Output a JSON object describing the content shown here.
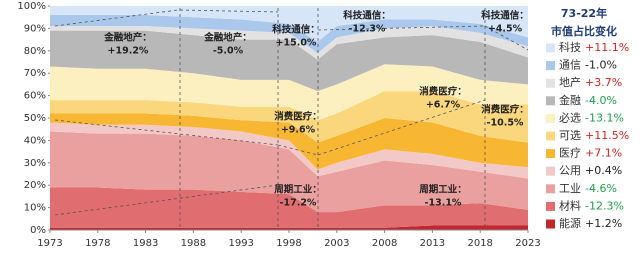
{
  "chart_data": {
    "type": "stacked_area",
    "x": [
      1973,
      1978,
      1983,
      1988,
      1993,
      1998,
      2001,
      2003,
      2008,
      2013,
      2018,
      2023
    ],
    "xlim": [
      1973,
      2023
    ],
    "xticks": [
      1973,
      1978,
      1983,
      1988,
      1993,
      1998,
      2003,
      2008,
      2013,
      2018,
      2023
    ],
    "ylim": [
      0,
      100
    ],
    "yticks": [
      {
        "value": 0,
        "label": "0%"
      },
      {
        "value": 10,
        "label": "10%"
      },
      {
        "value": 20,
        "label": "20%"
      },
      {
        "value": 30,
        "label": "30%"
      },
      {
        "value": 40,
        "label": "40%"
      },
      {
        "value": 50,
        "label": "50%"
      },
      {
        "value": 60,
        "label": "60%"
      },
      {
        "value": 70,
        "label": "70%"
      },
      {
        "value": 80,
        "label": "80%"
      },
      {
        "value": 90,
        "label": "90%"
      },
      {
        "value": 100,
        "label": "100%"
      }
    ],
    "legend_title": "73-22年",
    "legend_subtitle": "市值占比变化",
    "series": [
      {
        "name": "能源",
        "color": "#c0282d",
        "change": "+1.2%",
        "change_color": "#222",
        "values": [
          1,
          1,
          1,
          1,
          1,
          1,
          1,
          1,
          1,
          2,
          2,
          2
        ]
      },
      {
        "name": "材料",
        "color": "#e06d70",
        "change": "-12.3%",
        "change_color": "#1aa34a",
        "values": [
          18,
          18,
          17,
          17,
          16,
          15,
          7,
          7,
          10,
          9,
          10,
          7
        ]
      },
      {
        "name": "工业",
        "color": "#eba0a0",
        "change": "-4.6%",
        "change_color": "#1aa34a",
        "values": [
          25,
          24,
          25,
          24,
          23,
          20,
          16,
          18,
          20,
          18,
          14,
          14
        ]
      },
      {
        "name": "公用",
        "color": "#f3c9c7",
        "change": "+0.4%",
        "change_color": "#222",
        "values": [
          4,
          4,
          4,
          4,
          4,
          4,
          3,
          4,
          5,
          5,
          4,
          5
        ]
      },
      {
        "name": "医疗",
        "color": "#f7b733",
        "change": "+7.1%",
        "change_color": "#e02020",
        "values": [
          4,
          5,
          5,
          5,
          5,
          8,
          12,
          12,
          14,
          14,
          12,
          11
        ]
      },
      {
        "name": "可选",
        "color": "#fad77c",
        "change": "+11.5%",
        "change_color": "#e02020",
        "values": [
          6,
          6,
          6,
          6,
          6,
          7,
          10,
          10,
          12,
          14,
          14,
          17
        ]
      },
      {
        "name": "必选",
        "color": "#fdf0c0",
        "change": "-13.1%",
        "change_color": "#1aa34a",
        "values": [
          15,
          14,
          14,
          13,
          12,
          12,
          13,
          13,
          12,
          11,
          11,
          9
        ]
      },
      {
        "name": "金融",
        "color": "#b8b8b8",
        "change": "-4.0%",
        "change_color": "#1aa34a",
        "values": [
          16,
          17,
          17,
          17,
          18,
          18,
          14,
          18,
          12,
          14,
          17,
          12
        ]
      },
      {
        "name": "地产",
        "color": "#e2e2e2",
        "change": "+3.7%",
        "change_color": "#e02020",
        "values": [
          2,
          2,
          2,
          3,
          4,
          3,
          3,
          3,
          4,
          4,
          4,
          5
        ]
      },
      {
        "name": "通信",
        "color": "#a9c8ec",
        "change": "-1.0%",
        "change_color": "#222",
        "values": [
          5,
          5,
          5,
          5,
          5,
          4,
          5,
          5,
          4,
          3,
          4,
          4
        ]
      },
      {
        "name": "科技",
        "color": "#d6e5f7",
        "change": "+11.1%",
        "change_color": "#e02020",
        "values": [
          4,
          4,
          4,
          5,
          6,
          8,
          16,
          9,
          6,
          6,
          8,
          14
        ]
      }
    ],
    "annotations": [
      {
        "title": "金融地产：",
        "text": "+19.2%"
      },
      {
        "title": "金融地产：",
        "text": "-5.0%"
      },
      {
        "title": "科技通信：",
        "text": "+15.0%"
      },
      {
        "title": "科技通信：",
        "text": "-12.3%"
      },
      {
        "title": "科技通信：",
        "text": "+4.5%"
      },
      {
        "title": "消费医疗：",
        "text": "+9.6%"
      },
      {
        "title": "消费医疗：",
        "text": "+6.7%"
      },
      {
        "title": "消费医疗：",
        "text": "-10.5%"
      },
      {
        "title": "周期工业：",
        "text": "-17.2%"
      },
      {
        "title": "周期工业：",
        "text": "-13.1%"
      }
    ]
  }
}
